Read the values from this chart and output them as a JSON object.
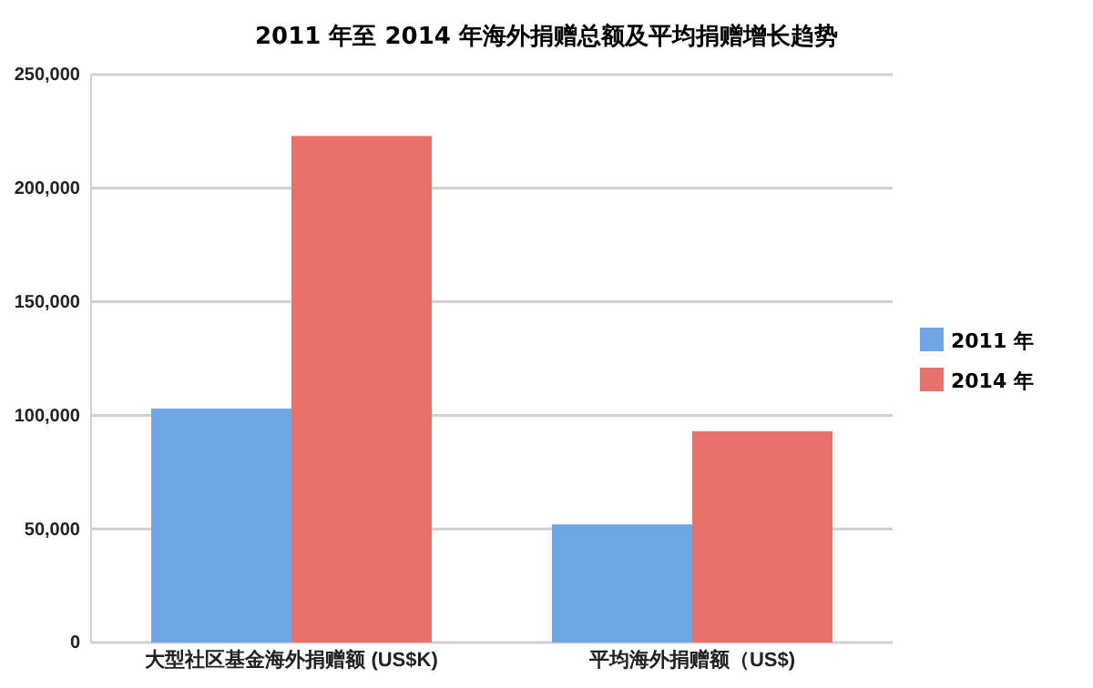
{
  "chart_data": {
    "type": "bar",
    "title": "2011 年至 2014 年海外捐赠总额及平均捐赠增长趋势",
    "categories": [
      "大型社区基金海外捐赠额 (US$K)",
      "平均海外捐赠额（US$)"
    ],
    "series": [
      {
        "name": "2011 年",
        "color": "#6fa6e6",
        "values": [
          103000,
          52000
        ]
      },
      {
        "name": "2014 年",
        "color": "#e8716b",
        "values": [
          223000,
          93000
        ]
      }
    ],
    "ylim": [
      0,
      250000
    ],
    "yticks": [
      {
        "value": 0,
        "label": "0"
      },
      {
        "value": 50000,
        "label": "50,000"
      },
      {
        "value": 100000,
        "label": "100,000"
      },
      {
        "value": 150000,
        "label": "150,000"
      },
      {
        "value": 200000,
        "label": "200,000"
      },
      {
        "value": 250000,
        "label": "250,000"
      }
    ],
    "grid": "y",
    "legend": "right"
  }
}
